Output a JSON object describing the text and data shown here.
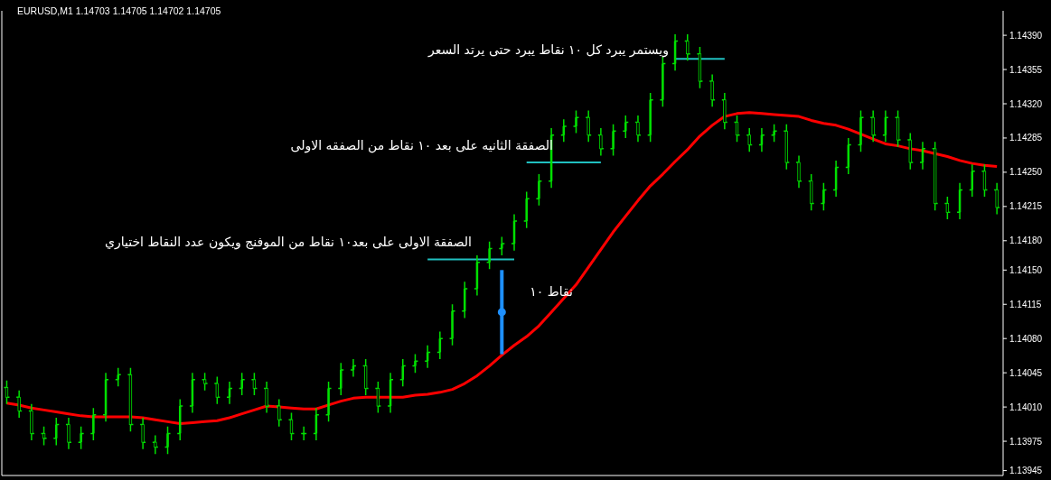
{
  "chart_data": {
    "type": "candlestick",
    "title": "EURUSD,M1 1.14703 1.14705 1.14702 1.14705",
    "categories": [
      null,
      null,
      null,
      null,
      null,
      null,
      null,
      null,
      null,
      null,
      null,
      null,
      null,
      null,
      null,
      null,
      null,
      null,
      null,
      null,
      null,
      null,
      null,
      null,
      null,
      null,
      null,
      null,
      null,
      null,
      null,
      null,
      null,
      null,
      null,
      null,
      null,
      null,
      null,
      null,
      null,
      null,
      null,
      null,
      null,
      null,
      null,
      null,
      null,
      null,
      null,
      null,
      null,
      null,
      null,
      null,
      null,
      null,
      null,
      null,
      null,
      null,
      null,
      null,
      null,
      null,
      null,
      null,
      null,
      null,
      null,
      null,
      null,
      null,
      null,
      null,
      null,
      null,
      null,
      null,
      null
    ],
    "color": "#00e000",
    "ohlc": [
      [
        1.1403,
        1.14037,
        1.14013,
        1.1402
      ],
      [
        1.1402,
        1.14027,
        1.13999,
        1.14006
      ],
      [
        1.14006,
        1.14013,
        1.13976,
        1.13983
      ],
      [
        1.13983,
        1.1399,
        1.13971,
        1.13978
      ],
      [
        1.13978,
        1.13999,
        1.13971,
        1.13992
      ],
      [
        1.13992,
        1.13999,
        1.13967,
        1.13974
      ],
      [
        1.13974,
        1.1399,
        1.13967,
        1.13983
      ],
      [
        1.13983,
        1.14009,
        1.13976,
        1.14002
      ],
      [
        1.14002,
        1.14045,
        1.13995,
        1.14038
      ],
      [
        1.14038,
        1.1405,
        1.14031,
        1.14043
      ],
      [
        1.14043,
        1.1405,
        1.13985,
        1.13992
      ],
      [
        1.13992,
        1.13999,
        1.13967,
        1.13974
      ],
      [
        1.13974,
        1.13981,
        1.13962,
        1.13969
      ],
      [
        1.13969,
        1.1399,
        1.13962,
        1.13983
      ],
      [
        1.13983,
        1.14018,
        1.13976,
        1.14011
      ],
      [
        1.14011,
        1.14045,
        1.14004,
        1.14038
      ],
      [
        1.14038,
        1.14045,
        1.14027,
        1.14034
      ],
      [
        1.14034,
        1.14041,
        1.14013,
        1.1402
      ],
      [
        1.1402,
        1.14036,
        1.14013,
        1.14029
      ],
      [
        1.14029,
        1.14045,
        1.14022,
        1.14038
      ],
      [
        1.14038,
        1.14045,
        1.14022,
        1.14029
      ],
      [
        1.14029,
        1.14036,
        1.14004,
        1.14011
      ],
      [
        1.14011,
        1.14018,
        1.1399,
        1.13997
      ],
      [
        1.13997,
        1.14004,
        1.13976,
        1.13983
      ],
      [
        1.13983,
        1.1399,
        1.13976,
        1.13983
      ],
      [
        1.13983,
        1.14009,
        1.13976,
        1.14002
      ],
      [
        1.14002,
        1.14036,
        1.13995,
        1.14029
      ],
      [
        1.14029,
        1.14055,
        1.14022,
        1.14048
      ],
      [
        1.14048,
        1.14059,
        1.14041,
        1.14052
      ],
      [
        1.14052,
        1.14059,
        1.14022,
        1.14029
      ],
      [
        1.14029,
        1.14036,
        1.14004,
        1.14011
      ],
      [
        1.14011,
        1.14045,
        1.14004,
        1.14038
      ],
      [
        1.14038,
        1.14059,
        1.14031,
        1.14052
      ],
      [
        1.14052,
        1.14064,
        1.14045,
        1.14057
      ],
      [
        1.14057,
        1.14073,
        1.1405,
        1.14066
      ],
      [
        1.14066,
        1.14087,
        1.14059,
        1.1408
      ],
      [
        1.1408,
        1.14115,
        1.14073,
        1.14108
      ],
      [
        1.14108,
        1.14138,
        1.14101,
        1.14131
      ],
      [
        1.14131,
        1.14165,
        1.14124,
        1.14158
      ],
      [
        1.14158,
        1.14179,
        1.14151,
        1.14172
      ],
      [
        1.14172,
        1.14184,
        1.14165,
        1.14177
      ],
      [
        1.14177,
        1.14207,
        1.1417,
        1.142
      ],
      [
        1.142,
        1.1423,
        1.14193,
        1.14223
      ],
      [
        1.14223,
        1.14248,
        1.14216,
        1.14241
      ],
      [
        1.14241,
        1.14295,
        1.14234,
        1.14288
      ],
      [
        1.14288,
        1.14304,
        1.14281,
        1.14297
      ],
      [
        1.14297,
        1.14313,
        1.1429,
        1.14306
      ],
      [
        1.14306,
        1.14313,
        1.14281,
        1.14288
      ],
      [
        1.14288,
        1.14295,
        1.14267,
        1.14274
      ],
      [
        1.14274,
        1.14299,
        1.14267,
        1.14292
      ],
      [
        1.14292,
        1.14308,
        1.14285,
        1.14301
      ],
      [
        1.14301,
        1.14308,
        1.14281,
        1.14288
      ],
      [
        1.14288,
        1.14331,
        1.14281,
        1.14324
      ],
      [
        1.14324,
        1.14368,
        1.14317,
        1.14361
      ],
      [
        1.14361,
        1.14391,
        1.14354,
        1.14384
      ],
      [
        1.14384,
        1.14391,
        1.14364,
        1.14371
      ],
      [
        1.14371,
        1.14378,
        1.14336,
        1.14343
      ],
      [
        1.14343,
        1.1435,
        1.14317,
        1.14324
      ],
      [
        1.14324,
        1.14331,
        1.14294,
        1.14301
      ],
      [
        1.14301,
        1.14308,
        1.14281,
        1.14288
      ],
      [
        1.14288,
        1.14295,
        1.14271,
        1.14278
      ],
      [
        1.14278,
        1.14295,
        1.14271,
        1.14288
      ],
      [
        1.14288,
        1.14299,
        1.14281,
        1.14292
      ],
      [
        1.14292,
        1.14299,
        1.14253,
        1.1426
      ],
      [
        1.1426,
        1.14267,
        1.14234,
        1.14241
      ],
      [
        1.14241,
        1.14248,
        1.14211,
        1.14218
      ],
      [
        1.14218,
        1.14239,
        1.14211,
        1.14232
      ],
      [
        1.14232,
        1.14262,
        1.14225,
        1.14255
      ],
      [
        1.14255,
        1.14285,
        1.14248,
        1.14278
      ],
      [
        1.14278,
        1.14313,
        1.14271,
        1.14306
      ],
      [
        1.14306,
        1.14313,
        1.14281,
        1.14288
      ],
      [
        1.14288,
        1.14313,
        1.14281,
        1.14306
      ],
      [
        1.14306,
        1.14313,
        1.14276,
        1.14283
      ],
      [
        1.14283,
        1.1429,
        1.14253,
        1.1426
      ],
      [
        1.1426,
        1.14281,
        1.14253,
        1.14274
      ],
      [
        1.14274,
        1.14281,
        1.14211,
        1.14218
      ],
      [
        1.14218,
        1.14225,
        1.14202,
        1.14209
      ],
      [
        1.14209,
        1.14239,
        1.14202,
        1.14232
      ],
      [
        1.14232,
        1.14258,
        1.14225,
        1.14251
      ],
      [
        1.14251,
        1.14258,
        1.14225,
        1.14232
      ],
      [
        1.14232,
        1.14239,
        1.14207,
        1.14214
      ]
    ],
    "series": [
      {
        "type": "line",
        "color": "#ff0000",
        "values": [
          1.14014,
          1.14012,
          1.14009,
          1.14007,
          1.14005,
          1.14003,
          1.14001,
          1.14,
          1.14,
          1.14,
          1.14,
          1.13999,
          1.13997,
          1.13995,
          1.13993,
          1.13994,
          1.13995,
          1.13996,
          1.13999,
          1.14003,
          1.14007,
          1.14011,
          1.1401,
          1.14009,
          1.14008,
          1.14008,
          1.14012,
          1.14016,
          1.14019,
          1.1402,
          1.1402,
          1.1402,
          1.1402,
          1.14022,
          1.14023,
          1.14025,
          1.14028,
          1.14034,
          1.14042,
          1.14052,
          1.14063,
          1.14073,
          1.14082,
          1.14093,
          1.14107,
          1.14121,
          1.14135,
          1.14153,
          1.14171,
          1.14189,
          1.14205,
          1.14221,
          1.14236,
          1.14248,
          1.14261,
          1.14273,
          1.14287,
          1.14298,
          1.14307,
          1.1431,
          1.14311,
          1.1431,
          1.14309,
          1.14308,
          1.14307,
          1.14303,
          1.143,
          1.14298,
          1.14294,
          1.14289,
          1.14284,
          1.14279,
          1.14277,
          1.14274,
          1.14272,
          1.14269,
          1.14266,
          1.14262,
          1.14259,
          1.14257,
          1.14256
        ]
      },
      {
        "type": "line",
        "color": "#20c0c0",
        "values": [
          null,
          null,
          null,
          null,
          null,
          null,
          null,
          null,
          null,
          null,
          null,
          null,
          null,
          null,
          null,
          null,
          null,
          null,
          null,
          null,
          null,
          null,
          null,
          null,
          null,
          null,
          null,
          null,
          null,
          null,
          null,
          null,
          null,
          null,
          1.14161,
          1.14161,
          1.14161,
          1.14161,
          1.14161,
          1.14161,
          1.14161,
          1.14161,
          null,
          null,
          null,
          null,
          null,
          null,
          null,
          null,
          null,
          null,
          null,
          null,
          null,
          null,
          null,
          null,
          null,
          null,
          null,
          null,
          null,
          null,
          null,
          null,
          null,
          null,
          null,
          null,
          null,
          null,
          null,
          null,
          null,
          null,
          null,
          null,
          null,
          null,
          null
        ]
      },
      {
        "type": "line",
        "color": "#20c0c0",
        "values": [
          null,
          null,
          null,
          null,
          null,
          null,
          null,
          null,
          null,
          null,
          null,
          null,
          null,
          null,
          null,
          null,
          null,
          null,
          null,
          null,
          null,
          null,
          null,
          null,
          null,
          null,
          null,
          null,
          null,
          null,
          null,
          null,
          null,
          null,
          null,
          null,
          null,
          null,
          null,
          null,
          null,
          null,
          1.1426,
          1.1426,
          1.1426,
          1.1426,
          1.1426,
          1.1426,
          1.1426,
          null,
          null,
          null,
          null,
          null,
          null,
          null,
          null,
          null,
          null,
          null,
          null,
          null,
          null,
          null,
          null,
          null,
          null,
          null,
          null,
          null,
          null,
          null,
          null,
          null,
          null,
          null,
          null,
          null,
          null,
          null,
          null
        ]
      },
      {
        "type": "line",
        "color": "#20c0c0",
        "values": [
          null,
          null,
          null,
          null,
          null,
          null,
          null,
          null,
          null,
          null,
          null,
          null,
          null,
          null,
          null,
          null,
          null,
          null,
          null,
          null,
          null,
          null,
          null,
          null,
          null,
          null,
          null,
          null,
          null,
          null,
          null,
          null,
          null,
          null,
          null,
          null,
          null,
          null,
          null,
          null,
          null,
          null,
          null,
          null,
          null,
          null,
          null,
          null,
          null,
          null,
          null,
          null,
          null,
          null,
          1.14366,
          1.14366,
          1.14366,
          1.14366,
          1.14366,
          null,
          null,
          null,
          null,
          null,
          null,
          null,
          null,
          null,
          null,
          null,
          null,
          null,
          null,
          null,
          null,
          null,
          null,
          null,
          null,
          null,
          null
        ]
      },
      {
        "type": "scatter",
        "color": "#1e90ff",
        "marker": "circle",
        "values": [
          null,
          null,
          null,
          null,
          null,
          null,
          null,
          null,
          null,
          null,
          null,
          null,
          null,
          null,
          null,
          null,
          null,
          null,
          null,
          null,
          null,
          null,
          null,
          null,
          null,
          null,
          null,
          null,
          null,
          null,
          null,
          null,
          null,
          null,
          null,
          null,
          null,
          null,
          null,
          null,
          1.14107,
          null,
          null,
          null,
          null,
          null,
          null,
          null,
          null,
          null,
          null,
          null,
          null,
          null,
          null,
          null,
          null,
          null,
          null,
          null,
          null,
          null,
          null,
          null,
          null,
          null,
          null,
          null,
          null,
          null,
          null,
          null,
          null,
          null,
          null,
          null,
          null,
          null,
          null,
          null,
          null
        ],
        "errors": [
          null,
          null,
          null,
          null,
          null,
          null,
          null,
          null,
          null,
          null,
          null,
          null,
          null,
          null,
          null,
          null,
          null,
          null,
          null,
          null,
          null,
          null,
          null,
          null,
          null,
          null,
          null,
          null,
          null,
          null,
          null,
          null,
          null,
          null,
          null,
          null,
          null,
          null,
          null,
          null,
          0.00043,
          null,
          null,
          null,
          null,
          null,
          null,
          null,
          null,
          null,
          null,
          null,
          null,
          null,
          null,
          null,
          null,
          null,
          null,
          null,
          null,
          null,
          null,
          null,
          null,
          null,
          null,
          null,
          null,
          null,
          null,
          null,
          null,
          null,
          null,
          null,
          null,
          null,
          null,
          null,
          null
        ]
      }
    ],
    "annotations": [
      "الصفقة الاولى على بعد١٠ نقاط من الموفنج ويكون عدد النقاط اختياري",
      "الصفقة الثانيه على بعد ١٠ نقاط من الصفقه الاولى",
      "ويستمر يبرد كل ١٠ نقاط يبرد حتى يرتد السعر",
      "نقاط ١٠"
    ],
    "ylim": [
      1.1394,
      1.14415
    ],
    "yticks": [
      1.13945,
      1.13975,
      {
        "value": 1.1401,
        "label": "1.14010"
      },
      1.14045,
      {
        "value": 1.1408,
        "label": "1.14080"
      },
      1.14115,
      {
        "value": 1.1415,
        "label": "1.14150"
      },
      {
        "value": 1.1418,
        "label": "1.14180"
      },
      1.14215,
      {
        "value": 1.1425,
        "label": "1.14250"
      },
      1.14285,
      {
        "value": 1.1432,
        "label": "1.14320"
      },
      1.14355,
      {
        "value": 1.1439,
        "label": "1.14390"
      }
    ]
  }
}
